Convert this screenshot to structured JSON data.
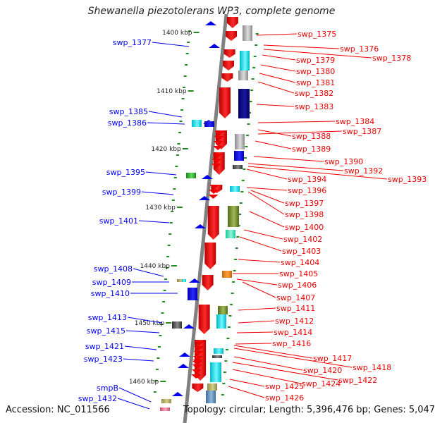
{
  "title": "Shewanella piezotolerans WP3, complete genome",
  "footer": {
    "accession": "Accession: NC_011566",
    "summary": "Topology: circular; Length: 5,396,476 bp; Genes: 5,047"
  },
  "colors": {
    "minus_strand": "#0000ee",
    "plus_strand": "#ee0000",
    "axis": "#808080",
    "tick": "#228b22"
  },
  "scale_labels": [
    "1400 kbp",
    "1410 kbp",
    "1420 kbp",
    "1430 kbp",
    "1440 kbp",
    "1450 kbp",
    "1460 kbp"
  ],
  "left_labels": [
    "swp_1377",
    "swp_1385",
    "swp_1386",
    "swp_1395",
    "swp_1399",
    "swp_1401",
    "swp_1408",
    "swp_1409",
    "swp_1410",
    "swp_1413",
    "swp_1415",
    "swp_1421",
    "swp_1423",
    "smpB",
    "swp_1432"
  ],
  "right_labels": [
    "swp_1375",
    "swp_1376",
    "swp_1378",
    "swp_1379",
    "swp_1380",
    "swp_1381",
    "swp_1382",
    "swp_1383",
    "swp_1384",
    "swp_1387",
    "swp_1388",
    "swp_1389",
    "swp_1390",
    "swp_1392",
    "swp_1393",
    "swp_1394",
    "swp_1396",
    "swp_1397",
    "swp_1398",
    "swp_1400",
    "swp_1402",
    "swp_1403",
    "swp_1404",
    "swp_1405",
    "swp_1406",
    "swp_1407",
    "swp_1411",
    "swp_1412",
    "swp_1414",
    "swp_1416",
    "swp_1417",
    "swp_1418",
    "swp_1420",
    "swp_1422",
    "swp_1424",
    "swp_1425",
    "swp_1426"
  ]
}
